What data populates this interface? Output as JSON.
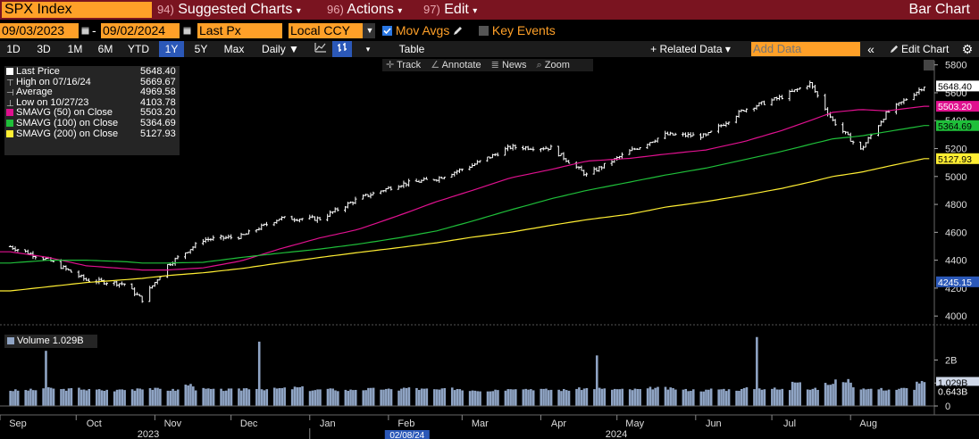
{
  "header": {
    "ticker": "SPX Index",
    "sections": [
      {
        "num": "94)",
        "label": "Suggested Charts",
        "caret": "▾"
      },
      {
        "num": "96)",
        "label": "Actions",
        "caret": "▾"
      },
      {
        "num": "97)",
        "label": "Edit",
        "caret": "▾"
      }
    ],
    "chart_kind": "Bar Chart"
  },
  "controls": {
    "start_date": "09/03/2023",
    "end_date": "09/02/2024",
    "field": "Last Px",
    "currency": "Local CCY",
    "mov_avgs": "Mov Avgs",
    "key_events": "Key Events",
    "dash": "-",
    "calendar_icon": "calendar-icon",
    "pencil_icon": "pencil-icon"
  },
  "period_tabs": [
    "1D",
    "3D",
    "1M",
    "6M",
    "YTD",
    "1Y",
    "5Y",
    "Max"
  ],
  "active_period": "1Y",
  "frequency": "Daily ▼",
  "table_label": "Table",
  "related_data": "+ Related Data ▾",
  "add_data_placeholder": "Add Data",
  "edit_chart": "Edit Chart",
  "chart_tools": [
    "Track",
    "Annotate",
    "News",
    "Zoom"
  ],
  "legend": [
    {
      "label": "Last Price",
      "value": "5648.40",
      "color": "#ffffff"
    },
    {
      "label": "High on 07/16/24",
      "value": "5669.67",
      "color": ""
    },
    {
      "label": "Average",
      "value": "4969.58",
      "color": ""
    },
    {
      "label": "Low on 10/27/23",
      "value": "4103.78",
      "color": ""
    },
    {
      "label": "SMAVG (50)  on Close",
      "value": "5503.20",
      "color": "#e0118f"
    },
    {
      "label": "SMAVG (100)  on Close",
      "value": "5364.69",
      "color": "#1fbf3a"
    },
    {
      "label": "SMAVG (200)  on Close",
      "value": "5127.93",
      "color": "#ffee33"
    }
  ],
  "volume_legend": {
    "label": "Volume",
    "value": "1.029B"
  },
  "right_axis_labels": [
    {
      "text": "5648.40",
      "bg": "#ffffff",
      "fg": "#000000",
      "value": 5648.4
    },
    {
      "text": "5503.20",
      "bg": "#e0118f",
      "fg": "#ffffff",
      "value": 5503.2
    },
    {
      "text": "5364.69",
      "bg": "#1fbf3a",
      "fg": "#000000",
      "value": 5364.69
    },
    {
      "text": "5127.93",
      "bg": "#ffee33",
      "fg": "#000000",
      "value": 5127.93
    },
    {
      "text": "4245.15",
      "bg": "#2b58b8",
      "fg": "#ffffff",
      "value": 4245.15
    }
  ],
  "volume_axis_labels": [
    {
      "text": "1.029B",
      "bg": "#cfd8e8",
      "fg": "#000000",
      "value": 1.029
    },
    {
      "text": "0.643B",
      "bg": "#000000",
      "fg": "#ffffff",
      "value": 0.643
    }
  ],
  "bottom_labels": {
    "year_2023": "2023",
    "year_2024": "2024",
    "cursor_date": "02/08/24"
  },
  "colors": {
    "header_bg": "#7a1420",
    "accent_orange": "#ffa028",
    "active_tab": "#2b58b8",
    "price_bars": "#ffffff",
    "sma50": "#e0118f",
    "sma100": "#1fbf3a",
    "sma200": "#ffee33",
    "volume": "#8fa4c4"
  },
  "chart_data": [
    {
      "type": "line",
      "title": "",
      "x": [
        "2023-09-05",
        "2023-09-20",
        "2023-10-05",
        "2023-10-20",
        "2023-10-27",
        "2023-11-06",
        "2023-11-20",
        "2023-12-05",
        "2023-12-20",
        "2024-01-05",
        "2024-01-20",
        "2024-02-05",
        "2024-02-20",
        "2024-03-05",
        "2024-03-20",
        "2024-04-05",
        "2024-04-19",
        "2024-05-06",
        "2024-05-20",
        "2024-06-05",
        "2024-06-20",
        "2024-07-05",
        "2024-07-16",
        "2024-07-25",
        "2024-08-05",
        "2024-08-15",
        "2024-08-30"
      ],
      "series": [
        {
          "name": "Last Price",
          "values": [
            4497,
            4402,
            4258,
            4230,
            4117,
            4366,
            4547,
            4570,
            4700,
            4697,
            4840,
            4942,
            4985,
            5080,
            5210,
            5205,
            5010,
            5180,
            5300,
            5290,
            5480,
            5570,
            5667,
            5400,
            5190,
            5450,
            5648
          ]
        },
        {
          "name": "SMAVG (50)  on Close",
          "values": [
            4460,
            4420,
            4360,
            4340,
            4330,
            4330,
            4345,
            4395,
            4480,
            4560,
            4620,
            4720,
            4820,
            4900,
            4990,
            5050,
            5110,
            5130,
            5160,
            5190,
            5250,
            5330,
            5400,
            5460,
            5480,
            5470,
            5503
          ]
        },
        {
          "name": "SMAVG (100)  on Close",
          "values": [
            4380,
            4400,
            4400,
            4390,
            4380,
            4380,
            4385,
            4420,
            4450,
            4480,
            4515,
            4560,
            4610,
            4680,
            4760,
            4840,
            4900,
            4960,
            5010,
            5060,
            5120,
            5180,
            5230,
            5270,
            5290,
            5320,
            5365
          ]
        },
        {
          "name": "SMAVG (200)  on Close",
          "values": [
            4180,
            4210,
            4240,
            4260,
            4270,
            4290,
            4310,
            4340,
            4380,
            4420,
            4455,
            4490,
            4525,
            4565,
            4600,
            4650,
            4690,
            4730,
            4780,
            4820,
            4865,
            4915,
            4960,
            5000,
            5030,
            5070,
            5128
          ]
        }
      ],
      "ylim": [
        3950,
        5830
      ],
      "yticks": [
        4000,
        4200,
        4400,
        4600,
        4800,
        5000,
        5200,
        5400,
        5600,
        5800
      ],
      "xtick_labels": [
        "Sep",
        "Oct",
        "Nov",
        "Dec",
        "Jan",
        "Feb",
        "Mar",
        "Apr",
        "May",
        "Jun",
        "Jul",
        "Aug"
      ],
      "xlabel": "",
      "ylabel": "",
      "grid": false,
      "legend_placement": "top-left"
    },
    {
      "type": "bar",
      "title": "",
      "series": [
        {
          "name": "Volume",
          "values": [
            0.68,
            0.7,
            2.4,
            0.72,
            0.75,
            0.7,
            0.68,
            0.72,
            0.78,
            0.74,
            0.7,
            0.92,
            0.73,
            0.7,
            0.71,
            2.8,
            0.74,
            0.76,
            0.8,
            0.7,
            0.72,
            0.69,
            0.72,
            0.74,
            0.71,
            0.78,
            0.73,
            0.71,
            0.75,
            0.7,
            0.68,
            0.72,
            3.1,
            0.74,
            0.71,
            0.7,
            0.75,
            2.2,
            0.73,
            0.71,
            0.72,
            0.78,
            0.75,
            0.7,
            0.68,
            0.73,
            0.71,
            3.0,
            0.76,
            0.72,
            1.1,
            0.74,
            0.95,
            1.1,
            0.78,
            0.74,
            0.72,
            0.76,
            1.029
          ]
        }
      ],
      "yticks": [
        0,
        1,
        2
      ],
      "ytick_labels": [
        "0",
        "1B",
        "2B"
      ],
      "ylim": [
        0,
        3.3
      ],
      "units": "B"
    }
  ]
}
